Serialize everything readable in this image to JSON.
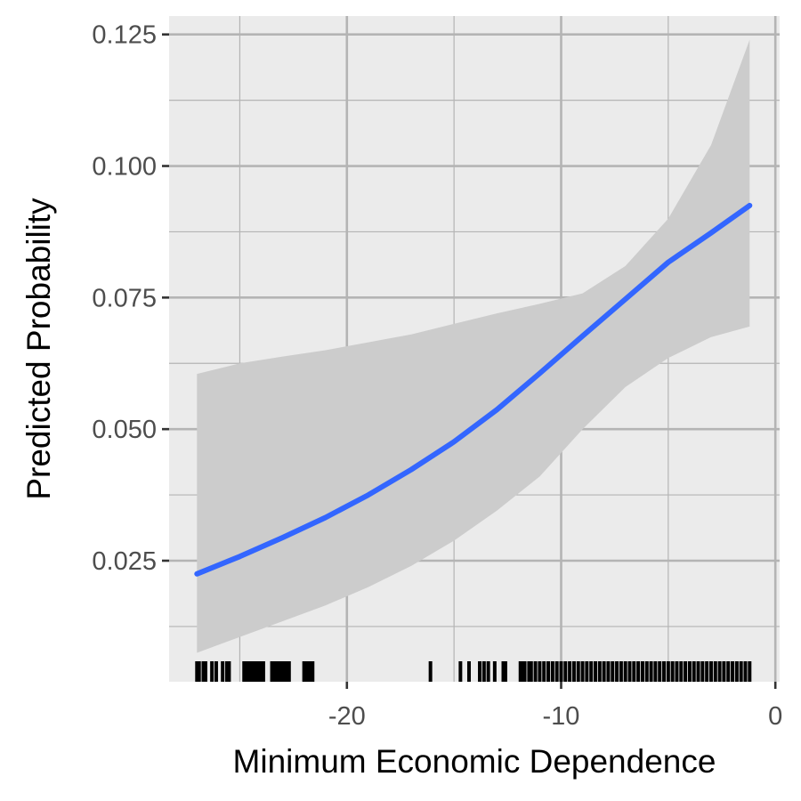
{
  "chart_data": {
    "type": "line",
    "title": "",
    "xlabel": "Minimum Economic Dependence",
    "ylabel": "Predicted Probability",
    "xlim": [
      -28.3,
      0.2
    ],
    "ylim": [
      0.002,
      0.1285
    ],
    "x_ticks": [
      -20,
      -10,
      0
    ],
    "x_tick_labels": [
      "-20",
      "-10",
      "0"
    ],
    "y_ticks": [
      0.025,
      0.05,
      0.075,
      0.1,
      0.125
    ],
    "y_tick_labels": [
      "0.025",
      "0.050",
      "0.075",
      "0.100",
      "0.125"
    ],
    "grid": true,
    "legend": "none",
    "colors": {
      "panel": "#ebebeb",
      "grid": "#b4b4b4",
      "ribbon": "#cccccc",
      "line": "#3366ff",
      "rug": "#000000"
    },
    "series": [
      {
        "x": [
          -27.0,
          -25.0,
          -23.0,
          -21.0,
          -19.0,
          -17.0,
          -15.0,
          -13.0,
          -11.0,
          -9.0,
          -7.0,
          -5.0,
          -3.0,
          -1.2
        ],
        "y": [
          0.0225,
          0.0258,
          0.0294,
          0.0332,
          0.0375,
          0.0423,
          0.0476,
          0.0537,
          0.0606,
          0.0677,
          0.0747,
          0.0817,
          0.0873,
          0.0925
        ],
        "lower": [
          0.0075,
          0.0105,
          0.0135,
          0.0165,
          0.02,
          0.024,
          0.0288,
          0.0345,
          0.041,
          0.05,
          0.058,
          0.0635,
          0.0675,
          0.0695
        ],
        "upper": [
          0.0605,
          0.0625,
          0.0638,
          0.065,
          0.0665,
          0.068,
          0.07,
          0.072,
          0.0738,
          0.0758,
          0.081,
          0.09,
          0.104,
          0.124
        ]
      }
    ],
    "rug_x": [
      -27.0,
      -26.9,
      -26.7,
      -26.6,
      -26.3,
      -26.1,
      -25.8,
      -25.6,
      -25.5,
      -24.8,
      -24.7,
      -24.6,
      -24.5,
      -24.4,
      -24.3,
      -24.2,
      -24.1,
      -24.0,
      -23.9,
      -23.5,
      -23.4,
      -23.3,
      -23.2,
      -23.1,
      -23.0,
      -22.9,
      -22.8,
      -22.7,
      -22.0,
      -21.9,
      -21.8,
      -21.7,
      -21.6,
      -16.1,
      -14.7,
      -14.3,
      -13.8,
      -13.6,
      -13.4,
      -13.1,
      -12.7,
      -12.6,
      -11.9,
      -11.8,
      -11.7,
      -11.5,
      -11.4,
      -11.2,
      -11.0,
      -10.8,
      -10.6,
      -10.4,
      -10.2,
      -10.0,
      -9.8,
      -9.6,
      -9.4,
      -9.2,
      -9.0,
      -8.8,
      -8.6,
      -8.4,
      -8.2,
      -8.0,
      -7.8,
      -7.6,
      -7.4,
      -7.2,
      -7.0,
      -6.8,
      -6.6,
      -6.4,
      -6.2,
      -6.0,
      -5.8,
      -5.6,
      -5.4,
      -5.2,
      -5.0,
      -4.8,
      -4.6,
      -4.4,
      -4.2,
      -4.0,
      -3.8,
      -3.6,
      -3.4,
      -3.2,
      -3.0,
      -2.8,
      -2.6,
      -2.4,
      -2.2,
      -2.0,
      -1.8,
      -1.6,
      -1.4,
      -1.2
    ]
  }
}
